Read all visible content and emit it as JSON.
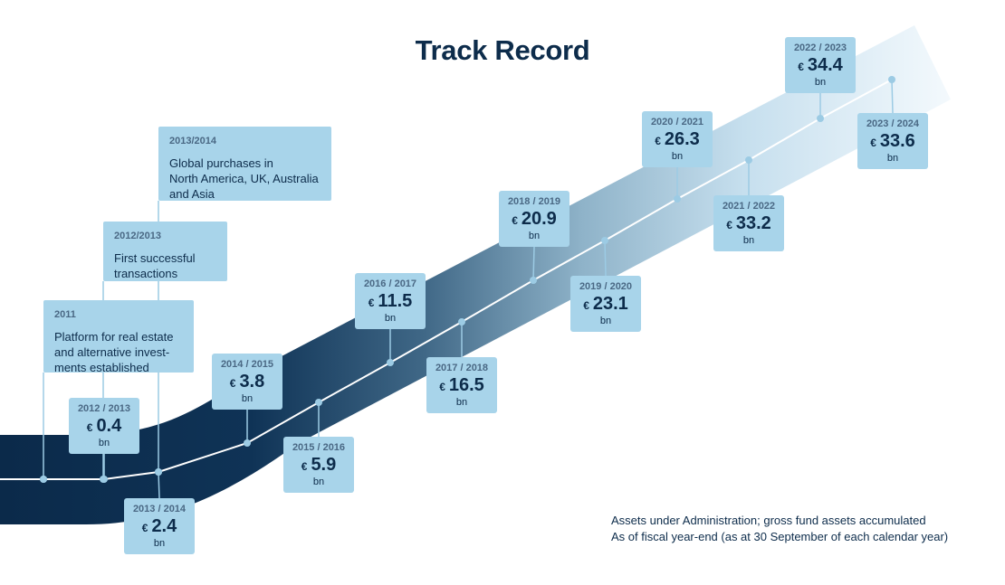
{
  "title": "Track Record",
  "chart_data": {
    "type": "line",
    "title": "Track Record",
    "currency_symbol": "€",
    "unit": "bn",
    "points": [
      {
        "period": "2012 / 2013",
        "value": 0.4
      },
      {
        "period": "2013 / 2014",
        "value": 2.4
      },
      {
        "period": "2014 / 2015",
        "value": 3.8
      },
      {
        "period": "2015 / 2016",
        "value": 5.9
      },
      {
        "period": "2016 / 2017",
        "value": 11.5
      },
      {
        "period": "2017 / 2018",
        "value": 16.5
      },
      {
        "period": "2018 / 2019",
        "value": 20.9
      },
      {
        "period": "2019 / 2020",
        "value": 23.1
      },
      {
        "period": "2020 / 2021",
        "value": 26.3
      },
      {
        "period": "2021 / 2022",
        "value": 33.2
      },
      {
        "period": "2022 / 2023",
        "value": 34.4
      },
      {
        "period": "2023 / 2024",
        "value": 33.6
      }
    ],
    "milestones": [
      {
        "year": "2011",
        "text": "Platform for real estate\nand alternative invest-\nments established"
      },
      {
        "year": "2012/2013",
        "text": "First successful\ntransactions"
      },
      {
        "year": "2013/2014",
        "text": "Global purchases in\nNorth America, UK, Australia\nand Asia"
      }
    ],
    "notes": [
      "Assets under Administration; gross fund assets accumulated",
      "As of fiscal year-end (as at 30 September of each calendar year)"
    ],
    "colors": {
      "band_dark": "#0b2a4a",
      "band_light": "#eaf4fa",
      "box": "#a8d4ea",
      "line": "#ffffff",
      "connector": "#9ccbe4"
    }
  }
}
